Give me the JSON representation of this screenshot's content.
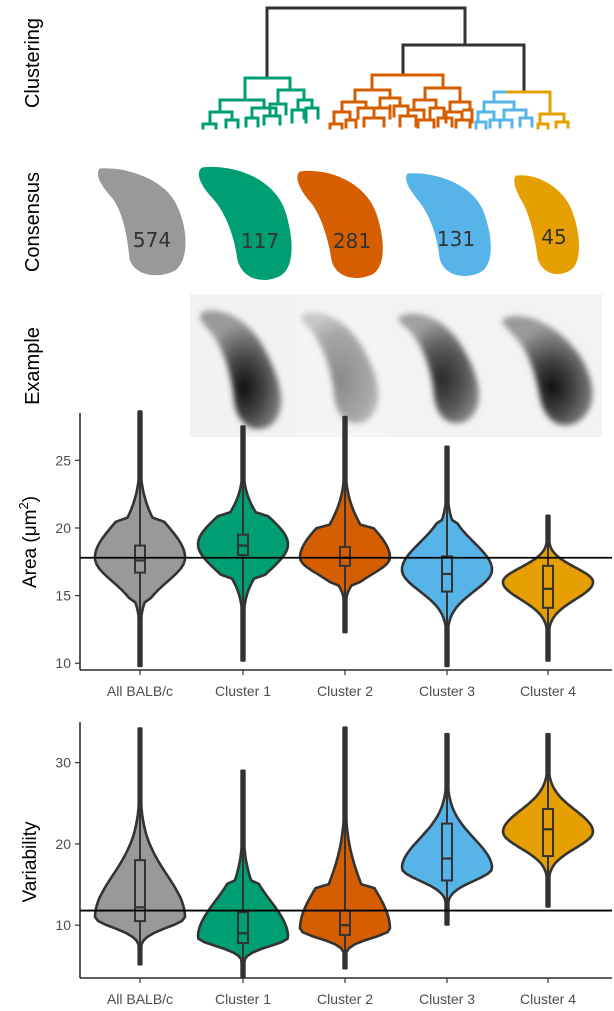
{
  "row_labels": {
    "clustering": "Clustering",
    "consensus": "Consensus",
    "example": "Example"
  },
  "colors": {
    "all": "#999999",
    "cluster1": "#009E73",
    "cluster2": "#D55E00",
    "cluster3": "#56B4E9",
    "cluster4": "#E69F00",
    "outline": "#333333",
    "dendro_root": "#333333"
  },
  "consensus": [
    {
      "group": "All BALB/c",
      "count": "574",
      "color": "#999999"
    },
    {
      "group": "Cluster 1",
      "count": "117",
      "color": "#009E73"
    },
    {
      "group": "Cluster 2",
      "count": "281",
      "color": "#D55E00"
    },
    {
      "group": "Cluster 3",
      "count": "131",
      "color": "#56B4E9"
    },
    {
      "group": "Cluster 4",
      "count": "45",
      "color": "#E69F00"
    }
  ],
  "chart_data": [
    {
      "type": "violin",
      "ylabel": "Area (μm²)",
      "ylabel_main": "Area (μm",
      "ylabel_sup": "2",
      "ylabel_close": ")",
      "categories": [
        "All BALB/c",
        "Cluster 1",
        "Cluster 2",
        "Cluster 3",
        "Cluster 4"
      ],
      "ylim": [
        9.5,
        28.5
      ],
      "yticks": [
        10,
        15,
        20,
        25
      ],
      "hline": 17.8,
      "series": [
        {
          "category": "All BALB/c",
          "min": 9.8,
          "q1": 16.7,
          "median": 17.6,
          "q3": 18.7,
          "max": 28.6,
          "peak": 17.8,
          "color": "#999999"
        },
        {
          "category": "Cluster 1",
          "min": 10.2,
          "q1": 18.0,
          "median": 18.7,
          "q3": 19.5,
          "max": 27.5,
          "peak": 18.8,
          "color": "#009E73"
        },
        {
          "category": "Cluster 2",
          "min": 12.3,
          "q1": 17.2,
          "median": 17.8,
          "q3": 18.6,
          "max": 28.2,
          "peak": 17.8,
          "color": "#D55E00"
        },
        {
          "category": "Cluster 3",
          "min": 9.8,
          "q1": 15.3,
          "median": 16.6,
          "q3": 17.9,
          "max": 26.0,
          "peak": 16.9,
          "color": "#56B4E9"
        },
        {
          "category": "Cluster 4",
          "min": 10.2,
          "q1": 14.1,
          "median": 15.5,
          "q3": 17.2,
          "max": 20.9,
          "peak": 16.0,
          "color": "#E69F00"
        }
      ]
    },
    {
      "type": "violin",
      "ylabel": "Variability",
      "categories": [
        "All BALB/c",
        "Cluster 1",
        "Cluster 2",
        "Cluster 3",
        "Cluster 4"
      ],
      "ylim": [
        3.5,
        35
      ],
      "yticks": [
        10,
        20,
        30
      ],
      "hline": 11.8,
      "series": [
        {
          "category": "All BALB/c",
          "min": 5.2,
          "q1": 10.5,
          "median": 12.2,
          "q3": 18.0,
          "max": 34.2,
          "peak": 11.0,
          "color": "#999999"
        },
        {
          "category": "Cluster 1",
          "min": 3.7,
          "q1": 7.8,
          "median": 9.0,
          "q3": 11.6,
          "max": 29.0,
          "peak": 8.5,
          "color": "#009E73"
        },
        {
          "category": "Cluster 2",
          "min": 4.7,
          "q1": 8.8,
          "median": 10.0,
          "q3": 11.8,
          "max": 34.3,
          "peak": 9.5,
          "color": "#D55E00"
        },
        {
          "category": "Cluster 3",
          "min": 10.1,
          "q1": 15.5,
          "median": 18.2,
          "q3": 22.5,
          "max": 33.5,
          "peak": 17.0,
          "color": "#56B4E9"
        },
        {
          "category": "Cluster 4",
          "min": 12.3,
          "q1": 18.5,
          "median": 21.8,
          "q3": 24.3,
          "max": 33.5,
          "peak": 21.5,
          "color": "#E69F00"
        }
      ]
    }
  ]
}
